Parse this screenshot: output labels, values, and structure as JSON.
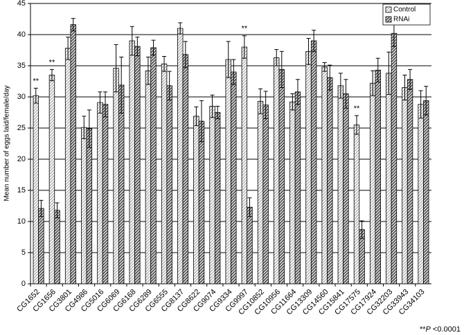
{
  "chart_data": {
    "type": "bar",
    "y_label": "Mean number of eggs laid/female/day",
    "categories": [
      "CG1652",
      "CG1656",
      "CG3801",
      "CG4986",
      "CG5016",
      "CG6069",
      "CG6168",
      "CG6289",
      "CG6555",
      "CG8137",
      "CG8622",
      "CG9074",
      "CG9334",
      "CG9997",
      "CG10852",
      "CG10956",
      "CG11664",
      "CG13309",
      "CG14560",
      "CG15841",
      "CG17575",
      "CG17924",
      "CG32203",
      "CG33943",
      "CG34103"
    ],
    "series": [
      {
        "name": "Control",
        "color": "#a6a6a6",
        "values": [
          30.2,
          33.5,
          37.8,
          25.1,
          29.1,
          34.6,
          39.0,
          34.2,
          35.3,
          41.0,
          26.9,
          28.5,
          36.0,
          38.0,
          29.3,
          36.3,
          29.2,
          37.3,
          34.8,
          31.8,
          25.5,
          32.2,
          33.8,
          31.5,
          28.8
        ],
        "errors": [
          1.2,
          0.9,
          1.8,
          1.8,
          1.7,
          3.8,
          2.3,
          2.2,
          1.2,
          0.9,
          1.5,
          1.8,
          2.9,
          1.8,
          2.0,
          1.3,
          1.3,
          2.1,
          0.7,
          2.0,
          1.5,
          2.0,
          3.4,
          2.0,
          2.2
        ]
      },
      {
        "name": "RNAi",
        "color": "#4d4d4d",
        "values": [
          12.1,
          11.8,
          41.6,
          24.9,
          28.8,
          31.9,
          38.1,
          37.9,
          31.8,
          36.8,
          26.1,
          27.5,
          34.0,
          12.3,
          28.7,
          34.4,
          30.8,
          39.0,
          33.1,
          30.5,
          8.7,
          34.3,
          40.2,
          32.8,
          29.4
        ],
        "errors": [
          1.3,
          1.2,
          1.0,
          3.0,
          2.0,
          4.5,
          1.5,
          1.2,
          2.3,
          2.1,
          3.3,
          1.0,
          2.0,
          1.5,
          2.2,
          2.9,
          2.0,
          1.7,
          2.0,
          2.3,
          1.4,
          1.9,
          2.1,
          1.6,
          2.3
        ]
      }
    ],
    "significance_marks": [
      "**",
      "**",
      null,
      null,
      null,
      null,
      null,
      null,
      null,
      null,
      null,
      null,
      null,
      "**",
      null,
      null,
      null,
      null,
      null,
      null,
      "**",
      null,
      null,
      null,
      null
    ],
    "footnote": [
      "**",
      "P",
      " <0.0001"
    ],
    "ylim": [
      0,
      45
    ],
    "yticks": [
      0,
      5,
      10,
      15,
      20,
      25,
      30,
      35,
      40,
      45
    ],
    "grid": true,
    "legend": "top-right"
  }
}
